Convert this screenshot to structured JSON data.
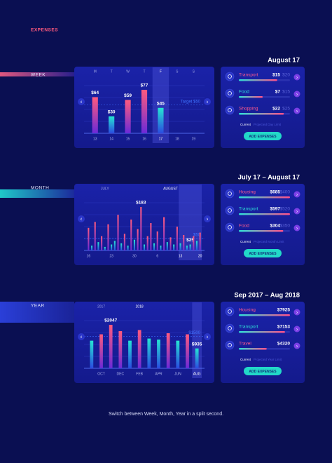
{
  "title": "EXPENSES",
  "sections": [
    {
      "tab": "WEEK",
      "heading": "August 17",
      "chart": {
        "top_labels": [
          "M",
          "T",
          "W",
          "T",
          "F",
          "S",
          "S"
        ],
        "bottom_labels": [
          "13",
          "14",
          "15",
          "16",
          "17",
          "18",
          "19"
        ],
        "highlight": [
          4,
          4
        ],
        "values": [
          64,
          30,
          59,
          77,
          45,
          null,
          null
        ],
        "value_labels": [
          "$64",
          "$30",
          "$59",
          "$77",
          "$45",
          null,
          null
        ],
        "target": 50,
        "target_label": "Target $50"
      },
      "items": [
        {
          "name": "Transport",
          "amount": "$15",
          "limit": "$20"
        },
        {
          "name": "Food",
          "amount": "$7",
          "limit": "$15"
        },
        {
          "name": "Shopping",
          "amount": "$22",
          "limit": "$25"
        }
      ],
      "legend": [
        "Current",
        "Projected Day Limit"
      ],
      "button": "ADD EXPENSES"
    },
    {
      "tab": "MONTH",
      "heading": "July 17 – August 17",
      "chart": {
        "top_labels": [
          null,
          null,
          null,
          null,
          null,
          "JULY",
          null,
          null,
          null,
          null,
          null,
          null,
          null,
          null,
          null,
          null,
          null,
          null,
          null,
          null,
          null,
          null,
          null,
          null,
          null,
          "AUGUST",
          null,
          null,
          null,
          null,
          null,
          null,
          null,
          null,
          null
        ],
        "bottom_labels": [
          "16",
          null,
          null,
          null,
          null,
          null,
          null,
          "23",
          null,
          null,
          null,
          null,
          null,
          null,
          "30",
          null,
          null,
          null,
          null,
          null,
          null,
          "6",
          null,
          null,
          null,
          null,
          null,
          null,
          "13",
          null,
          null,
          null,
          null,
          null,
          "20"
        ],
        "highlight": [
          28,
          34
        ],
        "values": [
          95,
          20,
          120,
          35,
          60,
          15,
          110,
          25,
          40,
          150,
          30,
          70,
          20,
          130,
          45,
          90,
          183,
          25,
          60,
          115,
          30,
          80,
          20,
          140,
          35,
          55,
          25,
          100,
          30,
          65,
          20,
          25,
          60,
          40,
          75
        ],
        "value_labels": [
          null,
          null,
          null,
          null,
          null,
          null,
          null,
          null,
          null,
          null,
          null,
          null,
          null,
          null,
          null,
          null,
          "$183",
          null,
          null,
          null,
          null,
          null,
          null,
          null,
          null,
          null,
          null,
          null,
          null,
          null,
          null,
          "$25",
          null,
          null,
          null
        ],
        "target": 50,
        "target_label": "$50"
      },
      "items": [
        {
          "name": "Housing",
          "amount": "$685",
          "limit": "$400"
        },
        {
          "name": "Transport",
          "amount": "$597",
          "limit": "$520"
        },
        {
          "name": "Food",
          "amount": "$304",
          "limit": "$350"
        }
      ],
      "legend": [
        "Current",
        "Projected Month Limit"
      ],
      "button": "ADD EXPENSES"
    },
    {
      "tab": "YEAR",
      "heading": "Sep 2017 – Aug 2018",
      "chart": {
        "top_labels": [
          null,
          "2017",
          null,
          null,
          null,
          "2018",
          null,
          null,
          null,
          null,
          null,
          null
        ],
        "bottom_labels": [
          null,
          "OCT",
          null,
          "DEC",
          null,
          "FEB",
          null,
          "APR",
          null,
          "JUN",
          null,
          "AUG"
        ],
        "highlight": [
          11,
          11
        ],
        "values": [
          1300,
          1600,
          2047,
          1750,
          1300,
          1800,
          1400,
          1350,
          1650,
          1300,
          1600,
          935
        ],
        "value_labels": [
          null,
          null,
          "$2047",
          null,
          null,
          null,
          null,
          null,
          null,
          null,
          null,
          "$935"
        ],
        "target": 1500,
        "target_label": "$1500"
      },
      "items": [
        {
          "name": "Housing",
          "amount": "$7925"
        },
        {
          "name": "Transport",
          "amount": "$7153"
        },
        {
          "name": "Travel",
          "amount": "$4320"
        }
      ],
      "legend": [
        "Current",
        "Projected Year Limit"
      ],
      "button": "ADD EXPENSES"
    }
  ],
  "footer": "Switch between Week, Month, Year in a split second."
}
